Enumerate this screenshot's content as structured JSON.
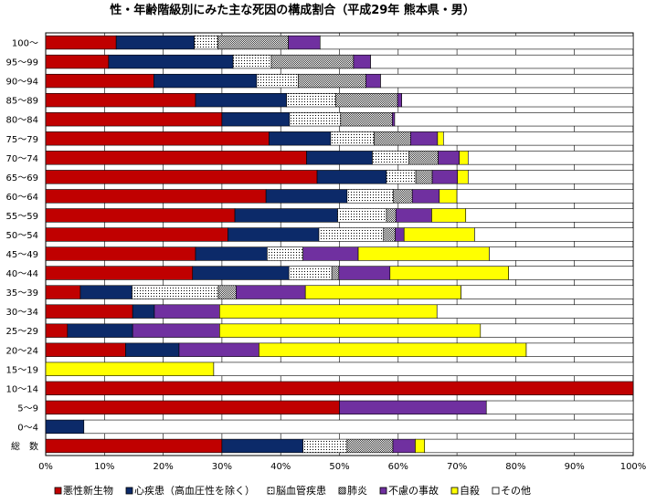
{
  "chart_data": {
    "type": "bar",
    "orientation": "horizontal",
    "stacked": true,
    "percent": true,
    "title": "性・年齢階級別にみた主な死因の構成割合（平成29年 熊本県・男）",
    "xlabel": "",
    "ylabel": "",
    "xlim": [
      0,
      100
    ],
    "xticks": [
      "0%",
      "10%",
      "20%",
      "30%",
      "40%",
      "50%",
      "60%",
      "70%",
      "80%",
      "90%",
      "100%"
    ],
    "grid": true,
    "legend_position": "bottom",
    "categories": [
      "100～",
      "95～99",
      "90～94",
      "85～89",
      "80～84",
      "75～79",
      "70～74",
      "65～69",
      "60～64",
      "55～59",
      "50～54",
      "45～49",
      "40～44",
      "35～39",
      "30～34",
      "25～29",
      "20～24",
      "15～19",
      "10～14",
      "5～9",
      "0～4",
      "総　数"
    ],
    "series": [
      {
        "name": "悪性新生物",
        "color": "#c00000",
        "pattern": "solid",
        "values": [
          12.0,
          10.7,
          18.4,
          25.5,
          30.0,
          38.0,
          44.4,
          46.2,
          37.5,
          32.2,
          31.0,
          25.5,
          25.0,
          5.9,
          14.8,
          3.7,
          13.6,
          0.0,
          100.0,
          50.0,
          0.0,
          30.0
        ]
      },
      {
        "name": "心疾患（高血圧性を除く）",
        "color": "#0c2a69",
        "pattern": "solid",
        "values": [
          13.3,
          21.2,
          17.5,
          15.5,
          11.5,
          10.5,
          11.2,
          11.8,
          13.8,
          17.5,
          15.5,
          12.2,
          16.4,
          8.8,
          3.7,
          11.1,
          9.1,
          0.0,
          0.0,
          0.0,
          6.5,
          13.8
        ]
      },
      {
        "name": "脳血管疾患",
        "color": "#ffffff",
        "pattern": "dots",
        "values": [
          4.0,
          6.5,
          7.1,
          8.4,
          8.7,
          7.4,
          6.2,
          5.0,
          7.9,
          8.3,
          11.0,
          6.1,
          7.3,
          14.7,
          0.0,
          0.0,
          0.0,
          0.0,
          0.0,
          0.0,
          0.0,
          7.5
        ]
      },
      {
        "name": "肺炎",
        "color": "#aaaaaa",
        "pattern": "checker",
        "values": [
          12.0,
          14.0,
          11.5,
          10.5,
          8.8,
          6.2,
          5.0,
          2.8,
          3.2,
          1.6,
          2.0,
          0.0,
          1.2,
          3.0,
          0.0,
          0.0,
          0.0,
          0.0,
          0.0,
          0.0,
          0.0,
          7.8
        ]
      },
      {
        "name": "不慮の事故",
        "color": "#7030a0",
        "pattern": "solid",
        "values": [
          5.4,
          2.9,
          2.5,
          0.7,
          0.4,
          4.6,
          3.6,
          4.3,
          4.6,
          6.1,
          1.5,
          9.4,
          8.7,
          11.8,
          11.1,
          14.8,
          13.6,
          0.0,
          0.0,
          25.0,
          0.0,
          3.8
        ]
      },
      {
        "name": "自殺",
        "color": "#ffff00",
        "pattern": "solid",
        "values": [
          0.0,
          0.0,
          0.0,
          0.0,
          0.0,
          1.0,
          1.5,
          1.8,
          3.0,
          5.8,
          12.0,
          22.3,
          20.2,
          26.5,
          37.0,
          44.4,
          45.5,
          28.6,
          0.0,
          0.0,
          0.0,
          1.6
        ]
      },
      {
        "name": "その他",
        "color": "#ffffff",
        "pattern": "solid",
        "values": [
          53.3,
          44.7,
          43.0,
          39.4,
          40.6,
          32.3,
          28.1,
          28.1,
          30.0,
          28.5,
          27.0,
          24.5,
          21.2,
          29.3,
          33.4,
          26.0,
          18.2,
          71.4,
          0.0,
          25.0,
          93.5,
          35.5
        ]
      }
    ]
  }
}
